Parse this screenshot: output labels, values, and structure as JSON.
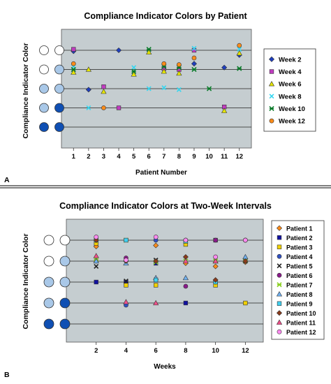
{
  "chart_data": [
    {
      "type": "scatter",
      "panel_label": "A",
      "title": "Compliance Indicator Colors by Patient",
      "xlabel": "Patient Number",
      "ylabel": "Compliance Indicator Color",
      "x_ticks": [
        "1",
        "2",
        "3",
        "4",
        "5",
        "6",
        "7",
        "8",
        "9",
        "10",
        "11",
        "12"
      ],
      "xlim": [
        0.2,
        12.8
      ],
      "levels": 5,
      "level_colors": [
        [
          "#ffffff",
          "#ffffff"
        ],
        [
          "#ffffff",
          "#a9c8e8"
        ],
        [
          "#a9c8e8",
          "#a9c8e8"
        ],
        [
          "#a9c8e8",
          "#0f4fb3"
        ],
        [
          "#0f4fb3",
          "#0f4fb3"
        ]
      ],
      "legend_position": "right",
      "series": [
        {
          "name": "Week 2",
          "marker": "diamond",
          "color": "#1f3fbf",
          "points": [
            [
              1,
              4.95
            ],
            [
              2,
              2.95
            ],
            [
              4,
              5
            ],
            [
              9,
              4.3
            ],
            [
              11,
              4.1
            ],
            [
              12,
              4.75
            ]
          ]
        },
        {
          "name": "Week 4",
          "marker": "square",
          "color": "#c03cc0",
          "points": [
            [
              1,
              5.05
            ],
            [
              3,
              3.1
            ],
            [
              4,
              2.0
            ],
            [
              7,
              4.05
            ],
            [
              8,
              4.0
            ],
            [
              9,
              5.0
            ],
            [
              11,
              2.05
            ]
          ]
        },
        {
          "name": "Week 6",
          "marker": "triangle",
          "color": "#e6e600",
          "points": [
            [
              1,
              3.85
            ],
            [
              2,
              4.0
            ],
            [
              3,
              2.85
            ],
            [
              5,
              3.75
            ],
            [
              6,
              4.9
            ],
            [
              7,
              3.9
            ],
            [
              8,
              3.8
            ],
            [
              11,
              1.85
            ],
            [
              12,
              4.85
            ]
          ]
        },
        {
          "name": "Week 8",
          "marker": "x",
          "color": "#33d6f0",
          "points": [
            [
              1,
              4.15
            ],
            [
              2,
              2.0
            ],
            [
              5,
              4.1
            ],
            [
              6,
              3.0
            ],
            [
              7,
              3.05
            ],
            [
              8,
              2.95
            ],
            [
              9,
              5.1
            ],
            [
              12,
              5.05
            ]
          ]
        },
        {
          "name": "Week 10",
          "marker": "star",
          "color": "#0a7a2a",
          "points": [
            [
              1,
              4.0
            ],
            [
              5,
              3.9
            ],
            [
              6,
              5.05
            ],
            [
              7,
              4.15
            ],
            [
              8,
              4.1
            ],
            [
              9,
              4.0
            ],
            [
              10,
              3.0
            ],
            [
              12,
              4.05
            ]
          ]
        },
        {
          "name": "Week 12",
          "marker": "circle",
          "color": "#ff8c1a",
          "points": [
            [
              1,
              4.3
            ],
            [
              3,
              2.0
            ],
            [
              7,
              4.3
            ],
            [
              8,
              4.25
            ],
            [
              9,
              4.6
            ],
            [
              12,
              5.25
            ]
          ]
        }
      ]
    },
    {
      "type": "scatter",
      "panel_label": "B",
      "title": "Compliance Indicator Colors at Two-Week Intervals",
      "xlabel": "Weeks",
      "ylabel": "Compliance Indicator Color",
      "x_ticks": [
        "2",
        "4",
        "6",
        "8",
        "10",
        "12"
      ],
      "x_tick_values": [
        2,
        4,
        6,
        8,
        10,
        12
      ],
      "xlim": [
        0,
        13.2
      ],
      "levels": 5,
      "level_colors": [
        [
          "#ffffff",
          "#ffffff"
        ],
        [
          "#ffffff",
          "#a9c8e8"
        ],
        [
          "#a9c8e8",
          "#a9c8e8"
        ],
        [
          "#a9c8e8",
          "#0f4fb3"
        ],
        [
          "#0f4fb3",
          "#0f4fb3"
        ]
      ],
      "legend_position": "right",
      "series": [
        {
          "name": "Patient 1",
          "marker": "diamond",
          "color": "#ff8c1a",
          "points": [
            [
              2,
              4.7
            ],
            [
              4,
              4.0
            ],
            [
              6,
              4.75
            ],
            [
              8,
              3.9
            ],
            [
              10,
              3.75
            ],
            [
              12,
              3.95
            ]
          ]
        },
        {
          "name": "Patient 2",
          "marker": "square",
          "color": "#1010a0",
          "points": [
            [
              2,
              3.0
            ],
            [
              4,
              3.0
            ],
            [
              6,
              3.9
            ],
            [
              8,
              2.0
            ],
            [
              10,
              5.0
            ]
          ]
        },
        {
          "name": "Patient 3",
          "marker": "square",
          "color": "#f0d000",
          "points": [
            [
              2,
              4.85
            ],
            [
              4,
              2.85
            ],
            [
              6,
              2.85
            ],
            [
              8,
              4.8
            ],
            [
              10,
              2.85
            ],
            [
              12,
              2.0
            ]
          ]
        },
        {
          "name": "Patient 4",
          "marker": "circle",
          "color": "#3050c0",
          "points": [
            [
              2,
              5.0
            ],
            [
              4,
              1.9
            ],
            [
              6,
              5.0
            ],
            [
              8,
              5.0
            ],
            [
              10,
              3.0
            ],
            [
              12,
              5.0
            ]
          ]
        },
        {
          "name": "Patient 5",
          "marker": "x",
          "color": "#222222",
          "points": [
            [
              2,
              3.75
            ],
            [
              4,
              3.05
            ],
            [
              6,
              4.05
            ],
            [
              8,
              4.0
            ],
            [
              10,
              4.0
            ],
            [
              12,
              4.0
            ]
          ]
        },
        {
          "name": "Patient 6",
          "marker": "circle",
          "color": "#8a1a8a",
          "points": [
            [
              2,
              4.0
            ],
            [
              4,
              4.15
            ],
            [
              6,
              4.0
            ],
            [
              8,
              2.8
            ],
            [
              10,
              5.0
            ],
            [
              12,
              5.0
            ]
          ]
        },
        {
          "name": "Patient 7",
          "marker": "star",
          "color": "#8ad020",
          "points": [
            [
              2,
              4.1
            ],
            [
              4,
              5.0
            ],
            [
              6,
              3.95
            ],
            [
              8,
              4.0
            ],
            [
              10,
              4.0
            ],
            [
              12,
              4.05
            ]
          ]
        },
        {
          "name": "Patient 8",
          "marker": "triangle",
          "color": "#6fb0f0",
          "points": [
            [
              2,
              4.0
            ],
            [
              4,
              3.9
            ],
            [
              6,
              3.2
            ],
            [
              8,
              3.2
            ],
            [
              10,
              4.0
            ],
            [
              12,
              4.2
            ]
          ]
        },
        {
          "name": "Patient 9",
          "marker": "square",
          "color": "#40d0f0",
          "points": [
            [
              2,
              5.0
            ],
            [
              4,
              5.0
            ],
            [
              6,
              3.1
            ],
            [
              8,
              4.95
            ],
            [
              10,
              3.0
            ]
          ]
        },
        {
          "name": "Patient 10",
          "marker": "diamond",
          "color": "#8a3a1a",
          "points": [
            [
              2,
              5.0
            ],
            [
              4,
              4.0
            ],
            [
              6,
              4.0
            ],
            [
              8,
              4.2
            ],
            [
              10,
              3.1
            ],
            [
              12,
              4.0
            ]
          ]
        },
        {
          "name": "Patient 11",
          "marker": "triangle",
          "color": "#f0508a",
          "points": [
            [
              2,
              4.25
            ],
            [
              4,
              2.05
            ],
            [
              6,
              2.0
            ],
            [
              8,
              4.0
            ],
            [
              10,
              4.0
            ]
          ]
        },
        {
          "name": "Patient 12",
          "marker": "circle",
          "color": "#ff8af0",
          "points": [
            [
              2,
              5.15
            ],
            [
              4,
              4.05
            ],
            [
              6,
              5.15
            ],
            [
              8,
              5.0
            ],
            [
              10,
              4.2
            ],
            [
              12,
              5.0
            ]
          ]
        }
      ]
    }
  ]
}
